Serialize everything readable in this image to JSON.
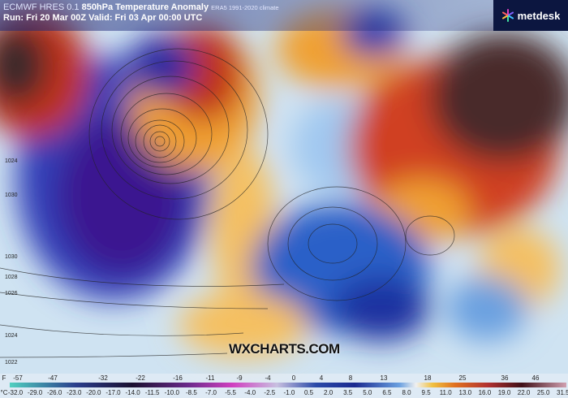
{
  "header": {
    "model": "ECMWF HRES 0.1",
    "parameter": "850hPa Temperature Anomaly",
    "climate": "ERA5 1991-2020 climate",
    "run_line": "Run: Fri 20 Mar 00Z Valid: Fri 03 Apr 00:00 UTC"
  },
  "logo": {
    "text": "metdesk"
  },
  "watermark": "WXCHARTS.COM",
  "isobar_labels": [
    "1024",
    "1030",
    "1030",
    "1028",
    "1026",
    "1024",
    "1022"
  ],
  "colorbar": {
    "f_unit": "F",
    "f_ticks": [
      "-57",
      "-47",
      "-32",
      "-22",
      "-16",
      "-11",
      "-9",
      "-4",
      "0",
      "4",
      "8",
      "13",
      "18",
      "25",
      "36",
      "46"
    ],
    "c_unit": "°C",
    "c_ticks": [
      "-32.0",
      "-29.0",
      "-26.0",
      "-23.0",
      "-20.0",
      "-17.0",
      "-14.0",
      "-11.5",
      "-10.0",
      "-8.5",
      "-7.0",
      "-5.5",
      "-4.0",
      "-2.5",
      "-1.0",
      "0.5",
      "2.0",
      "3.5",
      "5.0",
      "6.5",
      "8.0",
      "9.5",
      "11.0",
      "13.0",
      "16.0",
      "19.0",
      "22.0",
      "25.0",
      "31.5"
    ]
  },
  "colors": {
    "cold": "#2a1a8a",
    "cool": "#2e6fd0",
    "warm": "#f0a030",
    "hot": "#c03018",
    "extreme": "#3a2020"
  }
}
